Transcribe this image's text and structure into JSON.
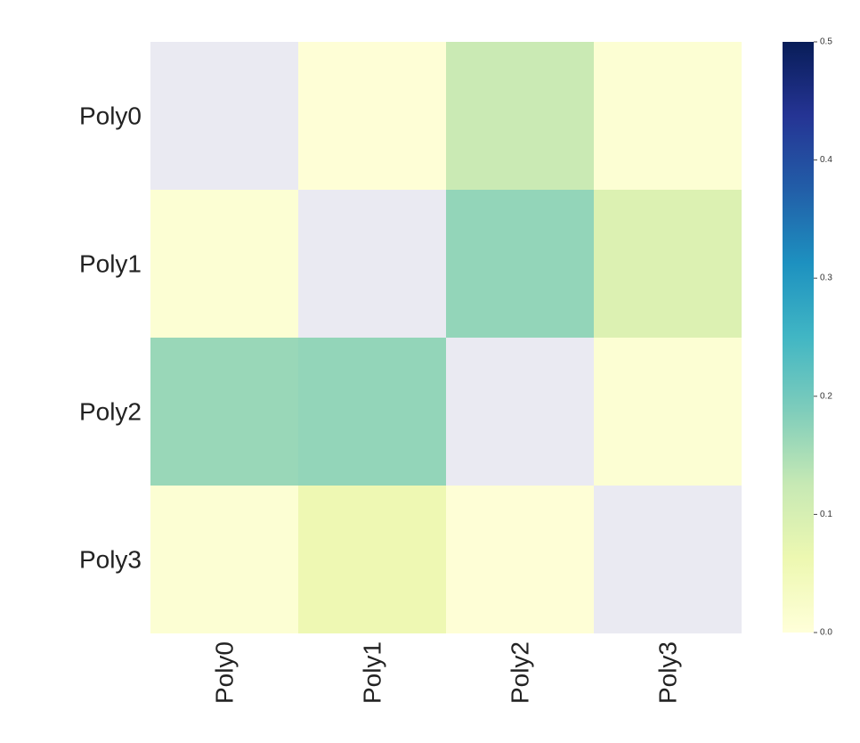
{
  "chart_data": {
    "type": "heatmap",
    "rows": [
      "Poly0",
      "Poly1",
      "Poly2",
      "Poly3"
    ],
    "columns": [
      "Poly0",
      "Poly1",
      "Poly2",
      "Poly3"
    ],
    "values": [
      [
        null,
        0.005,
        0.12,
        0.01
      ],
      [
        0.01,
        null,
        0.17,
        0.09
      ],
      [
        0.165,
        0.17,
        null,
        0.01
      ],
      [
        0.01,
        0.06,
        0.005,
        null
      ]
    ],
    "colorbar": {
      "min": 0.0,
      "max": 0.5,
      "ticks": [
        "0.0",
        "0.1",
        "0.2",
        "0.3",
        "0.4",
        "0.5"
      ],
      "colormap": "YlGnBu"
    },
    "missing_color": "#eaeaf2",
    "title": "",
    "xlabel": "",
    "ylabel": ""
  }
}
